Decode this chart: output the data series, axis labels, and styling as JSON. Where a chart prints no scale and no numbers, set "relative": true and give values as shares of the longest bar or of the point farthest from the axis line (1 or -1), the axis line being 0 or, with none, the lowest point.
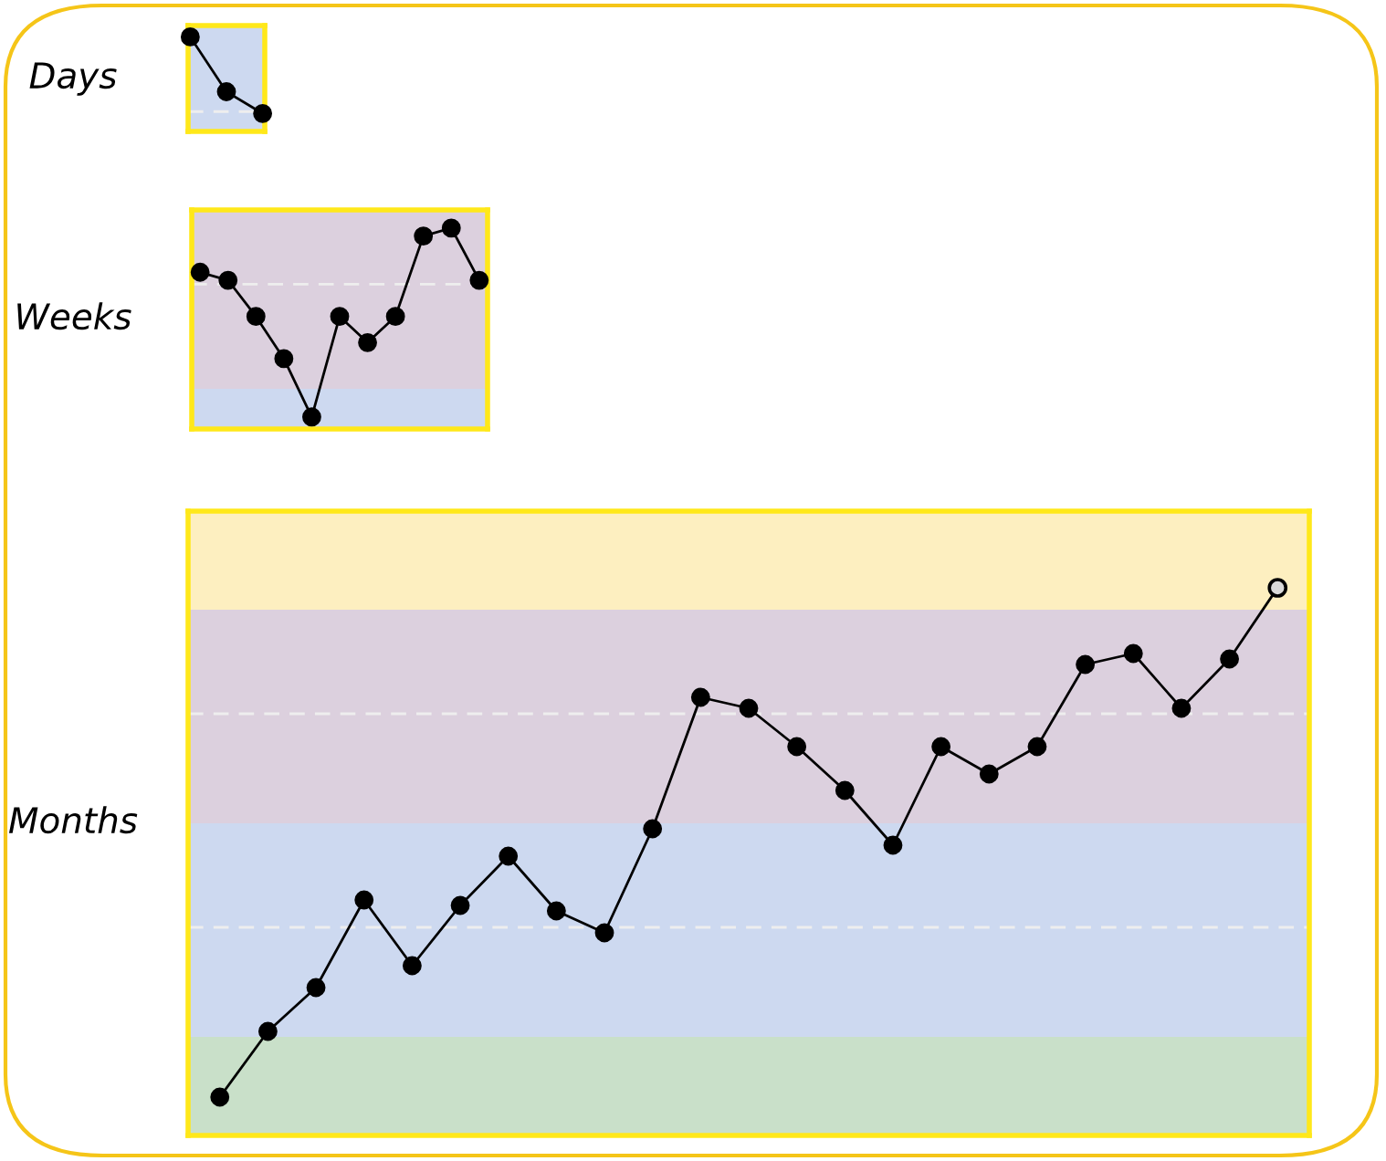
{
  "chart_data": [
    {
      "type": "line",
      "ylabel": "Days",
      "relative": true,
      "marker": "circle",
      "line_style": "solid",
      "categories": [
        null,
        null,
        null
      ],
      "series": [
        {
          "color": "#000000",
          "values": [
            1,
            0.42,
            0.19
          ]
        }
      ],
      "bands": [
        {
          "axis": "y",
          "from": 0,
          "to": 1.12,
          "color": "#cdd9f0"
        }
      ],
      "ref_lines": [
        {
          "axis": "y",
          "value": 0.21,
          "color": "#eeeeee",
          "line_style": "dashed"
        }
      ]
    },
    {
      "type": "line",
      "ylabel": "Weeks",
      "relative": true,
      "marker": "circle",
      "line_style": "solid",
      "categories": [
        null,
        null,
        null,
        null,
        null,
        null,
        null,
        null,
        null,
        null,
        null
      ],
      "series": [
        {
          "color": "#000000",
          "values": [
            0.78,
            0.74,
            0.56,
            0.35,
            0.06,
            0.56,
            0.43,
            0.56,
            0.96,
            1,
            0.74
          ]
        }
      ],
      "bands": [
        {
          "axis": "y",
          "from": 0,
          "to": 0.2,
          "color": "#cdd9f0"
        },
        {
          "axis": "y",
          "from": 0.2,
          "to": 1.09,
          "color": "#dcd0de"
        }
      ],
      "ref_lines": [
        {
          "axis": "y",
          "value": 0.72,
          "color": "#eeeeee",
          "line_style": "dashed"
        }
      ]
    },
    {
      "type": "line",
      "ylabel": "Months",
      "relative": true,
      "marker": "circle",
      "line_style": "solid",
      "categories": [
        null,
        null,
        null,
        null,
        null,
        null,
        null,
        null,
        null,
        null,
        null,
        null,
        null,
        null,
        null,
        null,
        null,
        null,
        null,
        null,
        null,
        null,
        null
      ],
      "series": [
        {
          "color": "#000000",
          "values": [
            0.07,
            0.19,
            0.27,
            0.43,
            0.31,
            0.42,
            0.51,
            0.41,
            0.37,
            0.56,
            0.8,
            0.78,
            0.71,
            0.63,
            0.53,
            0.71,
            0.66,
            0.71,
            0.86,
            0.88,
            0.78,
            0.87,
            1
          ],
          "colors": [
            "#000000",
            "#000000",
            "#000000",
            "#000000",
            "#000000",
            "#000000",
            "#000000",
            "#000000",
            "#000000",
            "#000000",
            "#000000",
            "#000000",
            "#000000",
            "#000000",
            "#000000",
            "#000000",
            "#000000",
            "#000000",
            "#000000",
            "#000000",
            "#000000",
            "#000000",
            "#d9d9d9"
          ]
        }
      ],
      "bands": [
        {
          "axis": "y",
          "from": 0,
          "to": 0.18,
          "color": "#c9e0c9"
        },
        {
          "axis": "y",
          "from": 0.18,
          "to": 0.57,
          "color": "#cdd9f0"
        },
        {
          "axis": "y",
          "from": 0.57,
          "to": 0.96,
          "color": "#dcd0de"
        },
        {
          "axis": "y",
          "from": 0.96,
          "to": 1.14,
          "color": "#fdefc0"
        }
      ],
      "ref_lines": [
        {
          "axis": "y",
          "value": 0.38,
          "color": "#eeeeee",
          "line_style": "dashed"
        },
        {
          "axis": "y",
          "value": 0.77,
          "color": "#eeeeee",
          "line_style": "dashed"
        }
      ]
    }
  ]
}
